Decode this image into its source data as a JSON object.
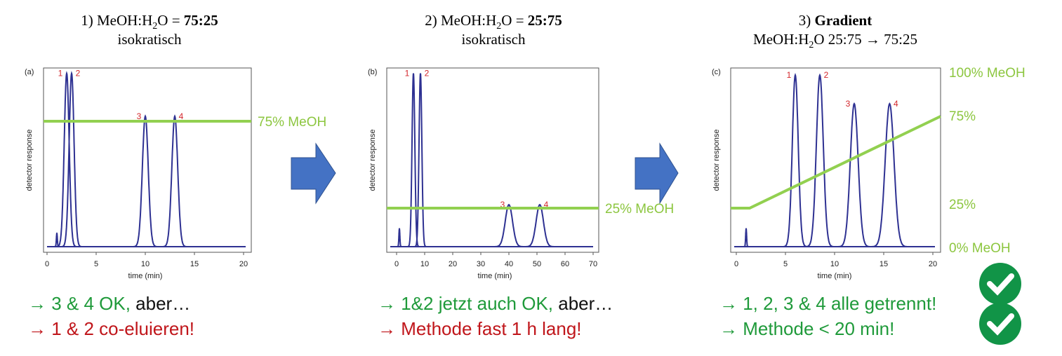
{
  "panels": [
    {
      "tag": "(a)",
      "title": [
        [
          {
            "text": "1) MeOH:H"
          },
          {
            "text": "2",
            "style": "sub"
          },
          {
            "text": "O = "
          },
          {
            "text": "75:25",
            "style": "bold"
          }
        ],
        [
          {
            "text": "isokratisch"
          }
        ]
      ],
      "xlim": [
        0,
        20
      ],
      "xticks": [
        0,
        5,
        10,
        15,
        20
      ],
      "xlabel": "time (min)",
      "ylabel": "detector response",
      "spike": {
        "t": 1.0,
        "h": 7.5
      },
      "peaks": [
        {
          "label": "1",
          "t": 2.0,
          "h": 97,
          "w": 0.25
        },
        {
          "label": "2",
          "t": 2.5,
          "h": 97,
          "w": 0.25
        },
        {
          "label": "3",
          "t": 10,
          "h": 73,
          "w": 0.3
        },
        {
          "label": "4",
          "t": 13,
          "h": 73,
          "w": 0.3
        }
      ],
      "line_label": "75% MeOH",
      "notes": [
        [
          {
            "text": "→ 3 & 4 OK, ",
            "color": "#1f9a3a"
          },
          {
            "text": "aber…",
            "color": "#111111"
          }
        ],
        [
          {
            "text": "→ 1 & 2 co-eluieren!",
            "color": "#c0161b"
          }
        ]
      ]
    },
    {
      "tag": "(b)",
      "title": [
        [
          {
            "text": "2) MeOH:H"
          },
          {
            "text": "2",
            "style": "sub"
          },
          {
            "text": "O = "
          },
          {
            "text": "25:75",
            "style": "bold"
          }
        ],
        [
          {
            "text": "isokratisch"
          }
        ]
      ],
      "xlim": [
        0,
        70
      ],
      "xticks": [
        0,
        10,
        20,
        30,
        40,
        50,
        60,
        70
      ],
      "xlabel": "time (min)",
      "ylabel": "detector response",
      "spike": {
        "t": 1.0,
        "h": 10
      },
      "peaks": [
        {
          "label": "1",
          "t": 6,
          "h": 97,
          "w": 0.5
        },
        {
          "label": "2",
          "t": 8.5,
          "h": 97,
          "w": 0.5
        },
        {
          "label": "3",
          "t": 40,
          "h": 23.5,
          "w": 1.3
        },
        {
          "label": "4",
          "t": 51,
          "h": 23.5,
          "w": 1.3
        }
      ],
      "line_label": "25% MeOH",
      "notes": [
        [
          {
            "text": "→ 1&2 jetzt auch OK, ",
            "color": "#1f9a3a"
          },
          {
            "text": "aber…",
            "color": "#111111"
          }
        ],
        [
          {
            "text": "→ Methode fast 1 h lang!",
            "color": "#c0161b"
          }
        ]
      ]
    },
    {
      "tag": "(c)",
      "title": [
        [
          {
            "text": "3) "
          },
          {
            "text": "Gradient",
            "style": "bold"
          }
        ],
        [
          {
            "text": "MeOH:H"
          },
          {
            "text": "2",
            "style": "sub"
          },
          {
            "text": "O 25:75 → 75:25"
          }
        ]
      ],
      "xlim": [
        0,
        20
      ],
      "xticks": [
        0,
        5,
        10,
        15,
        20
      ],
      "xlabel": "time (min)",
      "ylabel": "detector response",
      "spike": {
        "t": 1.0,
        "h": 10
      },
      "peaks": [
        {
          "label": "1",
          "t": 6,
          "h": 96,
          "w": 0.3
        },
        {
          "label": "2",
          "t": 8.5,
          "h": 96,
          "w": 0.35
        },
        {
          "label": "3",
          "t": 12,
          "h": 80,
          "w": 0.4
        },
        {
          "label": "4",
          "t": 15.6,
          "h": 80,
          "w": 0.45
        }
      ],
      "right_labels": [
        "100% MeOH",
        "75%",
        "25%",
        "0% MeOH"
      ],
      "notes": [
        [
          {
            "text": "→ 1, 2, 3 & 4 alle getrennt!",
            "color": "#1f9a3a"
          }
        ],
        [
          {
            "text": "→ Methode < 20 min!",
            "color": "#1f9a3a"
          }
        ]
      ]
    }
  ]
}
